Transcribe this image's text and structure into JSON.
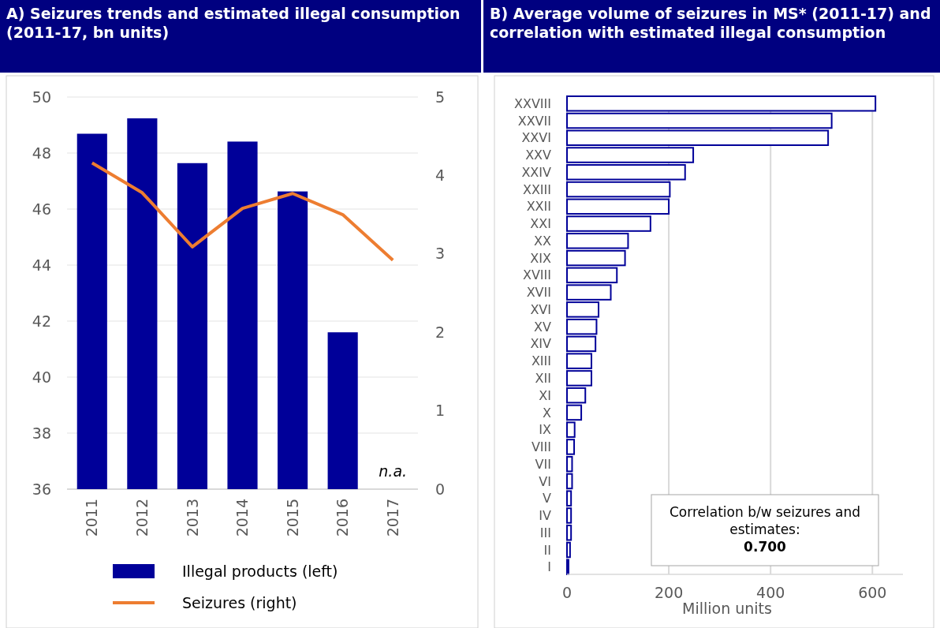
{
  "chart_data": [
    {
      "type": "bar",
      "title": "A) Seizures trends and estimated illegal consumption (2011-17, bn units)",
      "categories": [
        "2011",
        "2012",
        "2013",
        "2014",
        "2015",
        "2016",
        "2017"
      ],
      "series": [
        {
          "name": "Illegal products (left)",
          "type": "bar",
          "color": "#000099",
          "values": [
            48.69,
            49.24,
            47.64,
            48.41,
            46.63,
            41.6,
            null
          ]
        },
        {
          "name": "Seizures (right)",
          "type": "line",
          "axis": "y2",
          "color": "#ed7d31",
          "values": [
            4.16,
            3.78,
            3.09,
            3.58,
            3.77,
            3.5,
            2.92
          ]
        }
      ],
      "ylim": [
        36,
        50
      ],
      "yticks": [
        36,
        38,
        40,
        42,
        44,
        46,
        48,
        50
      ],
      "y2lim": [
        0,
        5
      ],
      "y2ticks": [
        0,
        1,
        2,
        3,
        4,
        5
      ],
      "grid": "y",
      "legend": "bottom",
      "annotations": [
        "n.a."
      ]
    },
    {
      "type": "bar",
      "orientation": "horizontal",
      "title": "B) Average volume of seizures in MS* (2011-17) and correlation with estimated illegal consumption",
      "xlabel": "Million units",
      "categories": [
        "XXVIII",
        "XXVII",
        "XXVI",
        "XXV",
        "XXIV",
        "XXIII",
        "XXII",
        "XXI",
        "XX",
        "XIX",
        "XVIII",
        "XVII",
        "XVI",
        "XV",
        "XIV",
        "XIII",
        "XII",
        "XI",
        "X",
        "IX",
        "VIII",
        "VII",
        "VI",
        "V",
        "IV",
        "III",
        "II",
        "I"
      ],
      "series": [
        {
          "color": "#000099",
          "values": [
            606,
            520,
            513,
            248,
            232,
            202,
            200,
            164,
            120,
            114,
            98,
            86,
            62,
            58,
            56,
            48,
            48,
            36,
            28,
            15,
            14,
            10,
            10,
            8,
            8,
            8,
            6,
            3
          ]
        }
      ],
      "xlim": [
        0,
        660
      ],
      "xticks": [
        0,
        200,
        400,
        600
      ],
      "grid": "x",
      "annotations": [
        "Correlation b/w seizures and estimates:",
        "0.700"
      ]
    }
  ]
}
